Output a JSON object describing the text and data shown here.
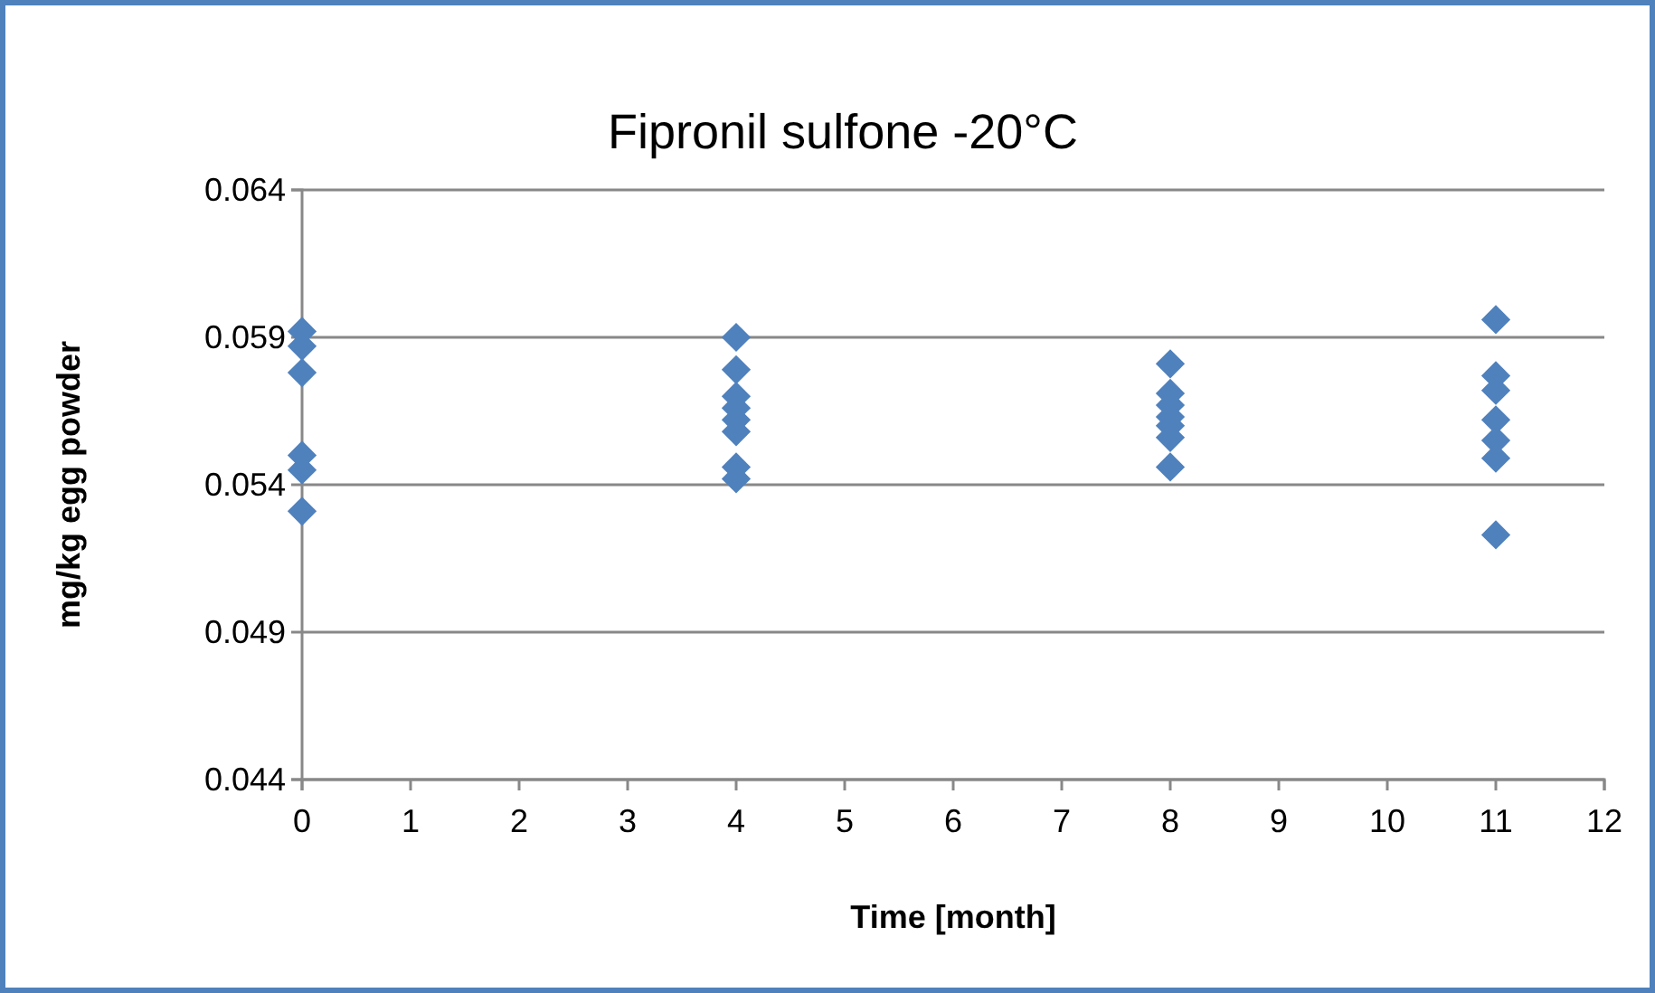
{
  "chart_data": {
    "type": "scatter",
    "title": "Fipronil sulfone -20°C",
    "xlabel": "Time [month]",
    "ylabel": "mg/kg egg powder",
    "xlim": [
      0,
      12
    ],
    "xticks": [
      0,
      1,
      2,
      3,
      4,
      5,
      6,
      7,
      8,
      9,
      10,
      11,
      12
    ],
    "ylim": [
      0.044,
      0.064
    ],
    "yticks": [
      0.044,
      0.049,
      0.054,
      0.059,
      0.064
    ],
    "grid": "y",
    "marker": "diamond",
    "series": [
      {
        "color": "#4f81bd",
        "x": [
          0,
          0,
          0,
          0,
          0,
          0,
          4,
          4,
          4,
          4,
          4,
          4,
          4,
          4,
          8,
          8,
          8,
          8,
          8,
          8,
          8,
          11,
          11,
          11,
          11,
          11,
          11,
          11
        ],
        "values": [
          0.0592,
          0.0587,
          0.0578,
          0.055,
          0.0545,
          0.0531,
          0.059,
          0.0579,
          0.057,
          0.0566,
          0.0562,
          0.0558,
          0.0546,
          0.0542,
          0.0581,
          0.0571,
          0.0567,
          0.0563,
          0.056,
          0.0556,
          0.0546,
          0.0596,
          0.0577,
          0.0572,
          0.0562,
          0.0555,
          0.0549,
          0.0523
        ]
      }
    ]
  }
}
